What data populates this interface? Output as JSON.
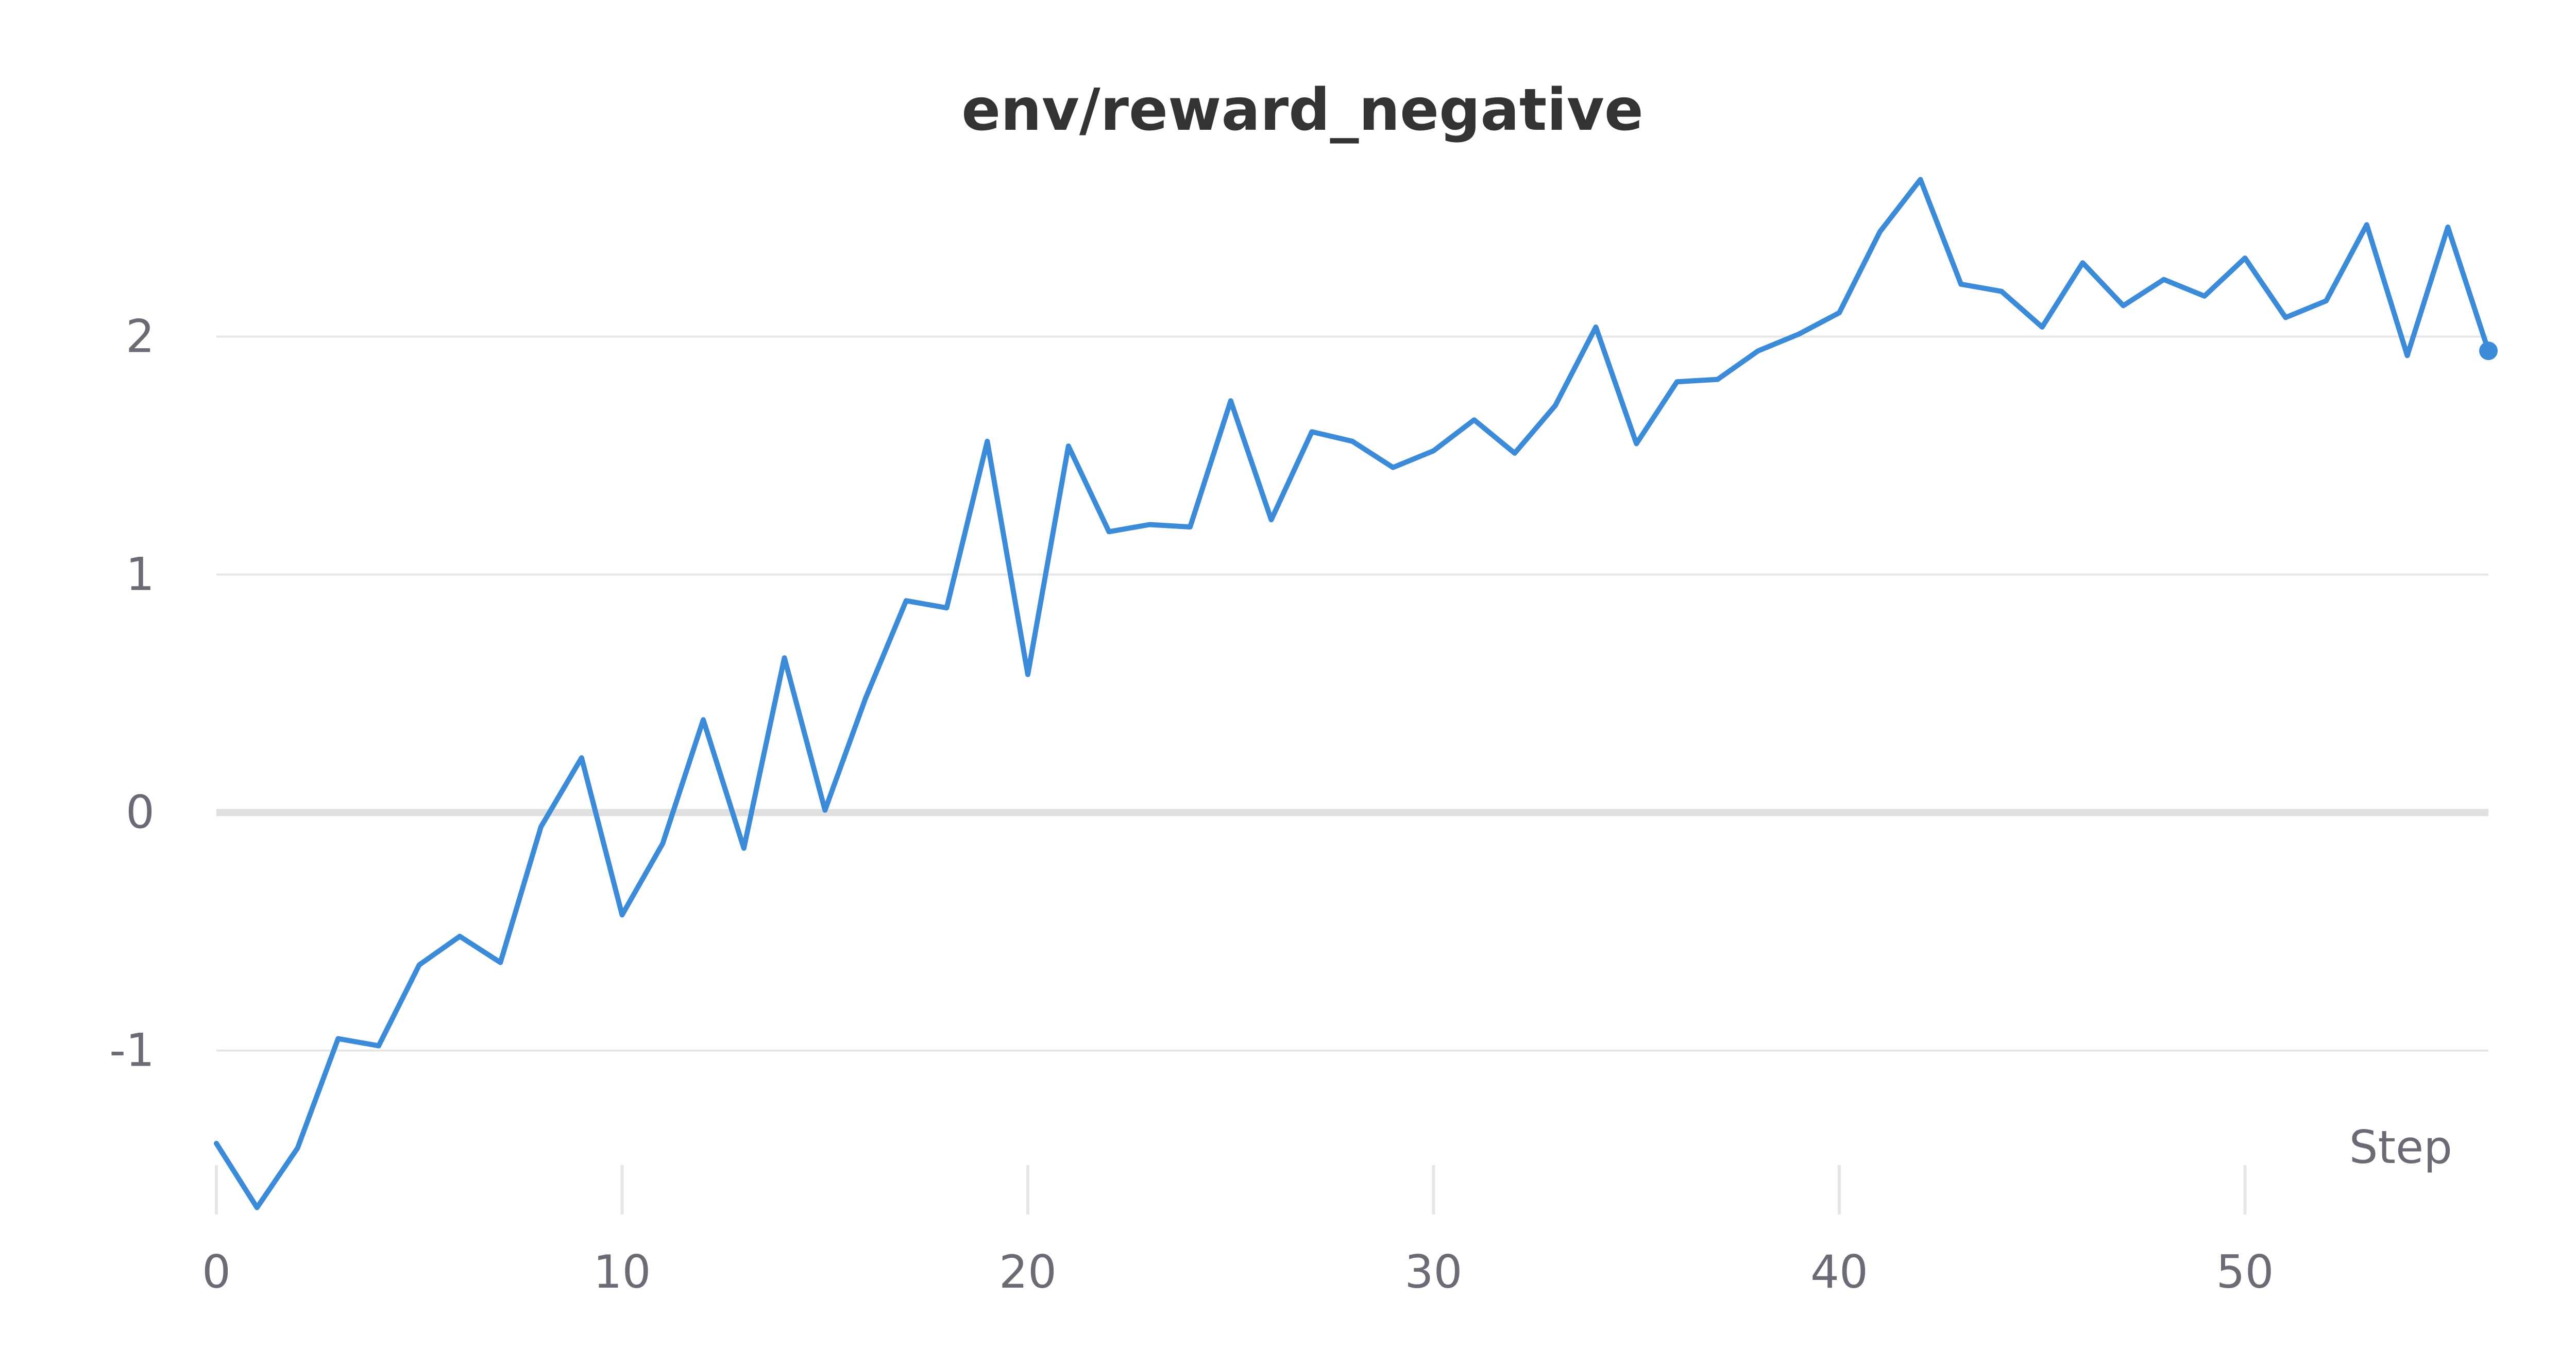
{
  "chart_data": {
    "type": "line",
    "title": "env/reward_negative",
    "xlabel": "Step",
    "ylabel": "",
    "xlim": [
      0,
      56
    ],
    "ylim": [
      -1.65,
      2.7
    ],
    "x_ticks": [
      0,
      10,
      20,
      30,
      40,
      50
    ],
    "y_ticks": [
      -1,
      0,
      1,
      2
    ],
    "y_tick_labels": [
      "-1",
      "0",
      "1",
      "2"
    ],
    "grid": true,
    "line_color": "#3b8bd8",
    "grid_color": "#e6e6e6",
    "zero_line_color": "#e0e0e0",
    "x": [
      0,
      1,
      2,
      3,
      4,
      5,
      6,
      7,
      8,
      9,
      10,
      11,
      12,
      13,
      14,
      15,
      16,
      17,
      18,
      19,
      20,
      21,
      22,
      23,
      24,
      25,
      26,
      27,
      28,
      29,
      30,
      31,
      32,
      33,
      34,
      35,
      36,
      37,
      38,
      39,
      40,
      41,
      42,
      43,
      44,
      45,
      46,
      47,
      48,
      49,
      50,
      51,
      52,
      53,
      54,
      55,
      56
    ],
    "series": [
      {
        "values": [
          -1.39,
          -1.66,
          -1.41,
          -0.95,
          -0.98,
          -0.64,
          -0.52,
          -0.63,
          -0.06,
          0.23,
          -0.43,
          -0.13,
          0.39,
          -0.15,
          0.65,
          0.01,
          0.48,
          0.89,
          0.86,
          1.56,
          0.58,
          1.54,
          1.18,
          1.21,
          1.2,
          1.73,
          1.23,
          1.6,
          1.56,
          1.45,
          1.52,
          1.65,
          1.51,
          1.71,
          2.04,
          1.55,
          1.81,
          1.82,
          1.94,
          2.01,
          2.1,
          2.44,
          2.66,
          2.22,
          2.19,
          2.04,
          2.31,
          2.13,
          2.24,
          2.17,
          2.33,
          2.08,
          2.15,
          2.47,
          1.92,
          2.46,
          1.94
        ]
      }
    ]
  }
}
